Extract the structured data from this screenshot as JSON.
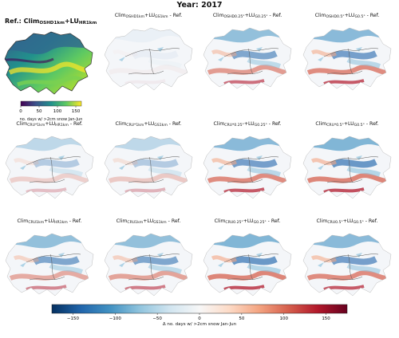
{
  "figure": {
    "title": "Year: 2017",
    "reference": {
      "title_main": "Ref.: Clim",
      "title_sub1": "OSHD1km",
      "title_mid": "+LU",
      "title_sub2": "HR1km",
      "colorbar_ticks": [
        "0",
        "50",
        "100",
        "150"
      ],
      "colorbar_label": "no. days w/ >2cm snow Jan-Jun"
    },
    "panels": [
      {
        "pre": "Clim",
        "sub1": "OSHD1km",
        "mid": "+LU",
        "sub2": "GS1km",
        "post": " - Ref."
      },
      {
        "pre": "Clim",
        "sub1": "OSHD0.25°",
        "mid": "+LU",
        "sub2": "G0.25°",
        "post": " - Ref."
      },
      {
        "pre": "Clim",
        "sub1": "OSHD0.5°",
        "mid": "+LU",
        "sub2": "G0.5°",
        "post": " - Ref."
      },
      {
        "pre": "Clim",
        "sub1": "CRU*1km",
        "mid": "+LU",
        "sub2": "HR1km",
        "post": " - Ref."
      },
      {
        "pre": "Clim",
        "sub1": "CRU*1km",
        "mid": "+LU",
        "sub2": "GS1km",
        "post": " - Ref."
      },
      {
        "pre": "Clim",
        "sub1": "CRU*0.25°",
        "mid": "+LU",
        "sub2": "G0.25°",
        "post": " - Ref."
      },
      {
        "pre": "Clim",
        "sub1": "CRU*0.5°",
        "mid": "+LU",
        "sub2": "G0.5°",
        "post": " - Ref."
      },
      {
        "pre": "Clim",
        "sub1": "CRU1km",
        "mid": "+LU",
        "sub2": "HR1km",
        "post": " - Ref."
      },
      {
        "pre": "Clim",
        "sub1": "CRU1km",
        "mid": "+LU",
        "sub2": "GS1km",
        "post": " - Ref."
      },
      {
        "pre": "Clim",
        "sub1": "CRU0.25°",
        "mid": "+LU",
        "sub2": "G0.25°",
        "post": " - Ref."
      },
      {
        "pre": "Clim",
        "sub1": "CRU0.5°",
        "mid": "+LU",
        "sub2": "G0.5°",
        "post": " - Ref."
      }
    ],
    "diff_colorbar": {
      "ticks": [
        "−150",
        "−100",
        "−50",
        "0",
        "50",
        "100",
        "150"
      ],
      "label": "Δ no. days w/ >2cm snow Jan-Jun"
    },
    "colors": {
      "viridis": [
        "#440154",
        "#3b528b",
        "#21918c",
        "#5ec962",
        "#fde725"
      ],
      "diverging": [
        "#053061",
        "#2166ac",
        "#4393c3",
        "#92c5de",
        "#d1e5f0",
        "#f7f7f7",
        "#fddbc7",
        "#f4a582",
        "#d6604d",
        "#b2182b",
        "#67001f"
      ]
    }
  }
}
